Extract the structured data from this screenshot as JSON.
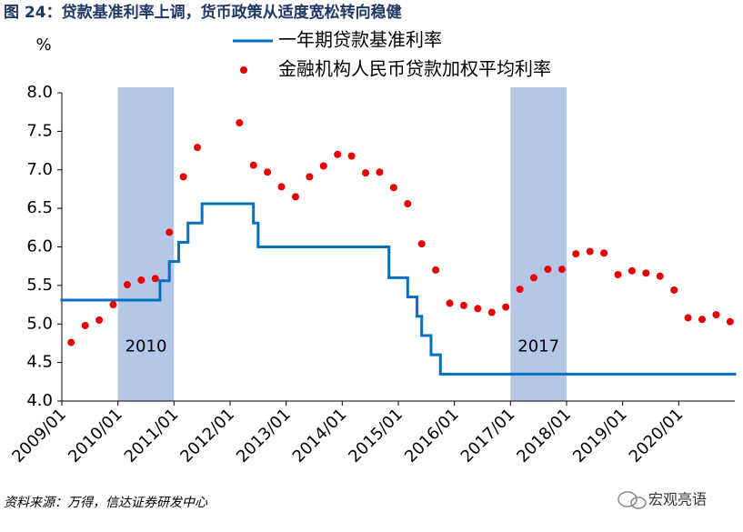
{
  "chart_data": {
    "type": "line",
    "title": "图 24：贷款基准利率上调，货币政策从适度宽松转向稳健",
    "y_unit": "%",
    "source": "资料来源：万得，信达证券研发中心",
    "watermark": "宏观亮语",
    "xlim": [
      "2009/01",
      "2020/12"
    ],
    "xticks": [
      "2009/01",
      "2010/01",
      "2011/01",
      "2012/01",
      "2013/01",
      "2014/01",
      "2015/01",
      "2016/01",
      "2017/01",
      "2018/01",
      "2019/01",
      "2020/01"
    ],
    "ylim": [
      4,
      8
    ],
    "yticks": [
      {
        "value": 4,
        "label": "4.0"
      },
      {
        "value": 4.5,
        "label": "4.5"
      },
      {
        "value": 5,
        "label": "5.0"
      },
      {
        "value": 5.5,
        "label": "5.5"
      },
      {
        "value": 6,
        "label": "6.0"
      },
      {
        "value": 6.5,
        "label": "6.5"
      },
      {
        "value": 7,
        "label": "7.0"
      },
      {
        "value": 7.5,
        "label": "7.5"
      },
      {
        "value": 8,
        "label": "8.0"
      }
    ],
    "grid": false,
    "bands": [
      {
        "label": "2010",
        "start": "2010/01",
        "end": "2011/01",
        "color": "#b4c7e7"
      },
      {
        "label": "2017",
        "start": "2017/01",
        "end": "2018/01",
        "color": "#b4c7e7"
      }
    ],
    "series": [
      {
        "name": "一年期贷款基准利率",
        "color": "#0070c0",
        "style": "step",
        "x": [
          "2009/01",
          "2010/10",
          "2010/12",
          "2011/02",
          "2011/04",
          "2011/07",
          "2012/06",
          "2012/07",
          "2014/11",
          "2015/03",
          "2015/05",
          "2015/06",
          "2015/08",
          "2015/10"
        ],
        "values": [
          5.31,
          5.56,
          5.81,
          6.06,
          6.31,
          6.56,
          6.31,
          6.0,
          5.6,
          5.35,
          5.1,
          4.85,
          4.6,
          4.35
        ]
      },
      {
        "name": "金融机构人民币贷款加权平均利率",
        "color": "#e60000",
        "style": "scatter",
        "x": [
          "2009/03",
          "2009/06",
          "2009/09",
          "2009/12",
          "2010/03",
          "2010/06",
          "2010/09",
          "2010/12",
          "2011/03",
          "2011/06",
          "2012/03",
          "2012/06",
          "2012/09",
          "2012/12",
          "2013/03",
          "2013/06",
          "2013/09",
          "2013/12",
          "2014/03",
          "2014/06",
          "2014/09",
          "2014/12",
          "2015/03",
          "2015/06",
          "2015/09",
          "2015/12",
          "2016/03",
          "2016/06",
          "2016/09",
          "2016/12",
          "2017/03",
          "2017/06",
          "2017/09",
          "2017/12",
          "2018/03",
          "2018/06",
          "2018/09",
          "2018/12",
          "2019/03",
          "2019/06",
          "2019/09",
          "2019/12",
          "2020/03",
          "2020/06",
          "2020/09",
          "2020/12"
        ],
        "values": [
          4.76,
          4.98,
          5.05,
          5.25,
          5.51,
          5.57,
          5.59,
          6.19,
          6.91,
          7.29,
          7.61,
          7.06,
          6.97,
          6.78,
          6.65,
          6.91,
          7.05,
          7.2,
          7.18,
          6.96,
          6.97,
          6.77,
          6.56,
          6.04,
          5.7,
          5.27,
          5.24,
          5.2,
          5.15,
          5.22,
          5.45,
          5.6,
          5.71,
          5.71,
          5.91,
          5.94,
          5.92,
          5.64,
          5.69,
          5.66,
          5.62,
          5.44,
          5.08,
          5.06,
          5.12,
          5.03
        ]
      }
    ]
  }
}
